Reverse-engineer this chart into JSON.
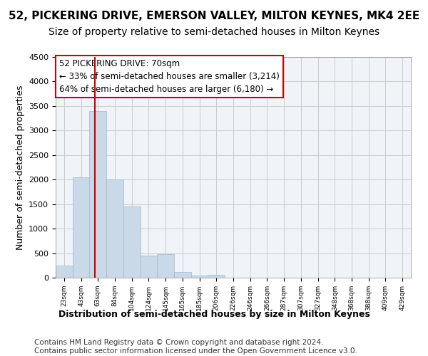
{
  "title1": "52, PICKERING DRIVE, EMERSON VALLEY, MILTON KEYNES, MK4 2EE",
  "title2": "Size of property relative to semi-detached houses in Milton Keynes",
  "xlabel": "Distribution of semi-detached houses by size in Milton Keynes",
  "ylabel": "Number of semi-detached properties",
  "footer1": "Contains HM Land Registry data © Crown copyright and database right 2024.",
  "footer2": "Contains public sector information licensed under the Open Government Licence v3.0.",
  "annotation_line1": "52 PICKERING DRIVE: 70sqm",
  "annotation_line2": "← 33% of semi-detached houses are smaller (3,214)",
  "annotation_line3": "64% of semi-detached houses are larger (6,180) →",
  "property_size": 70,
  "categories": [
    "23sqm",
    "43sqm",
    "63sqm",
    "84sqm",
    "104sqm",
    "124sqm",
    "145sqm",
    "165sqm",
    "185sqm",
    "206sqm",
    "226sqm",
    "246sqm",
    "266sqm",
    "287sqm",
    "307sqm",
    "327sqm",
    "348sqm",
    "368sqm",
    "388sqm",
    "409sqm",
    "429sqm"
  ],
  "bin_edges": [
    23,
    43,
    63,
    84,
    104,
    124,
    145,
    165,
    185,
    206,
    226,
    246,
    266,
    287,
    307,
    327,
    348,
    368,
    388,
    409,
    429
  ],
  "values": [
    250,
    2050,
    3400,
    2000,
    1450,
    450,
    475,
    110,
    50,
    60,
    0,
    0,
    0,
    0,
    0,
    0,
    0,
    0,
    0,
    0,
    0
  ],
  "bar_color": "#c9d9e8",
  "bar_edge_color": "#a0b8cc",
  "vline_color": "#cc0000",
  "vline_x": 70,
  "box_color": "#cc0000",
  "ylim": [
    0,
    4500
  ],
  "yticks": [
    0,
    500,
    1000,
    1500,
    2000,
    2500,
    3000,
    3500,
    4000,
    4500
  ],
  "grid_color": "#cccccc",
  "bg_color": "#f0f4f8",
  "title1_fontsize": 11,
  "title2_fontsize": 10,
  "xlabel_fontsize": 9,
  "ylabel_fontsize": 9,
  "footer_fontsize": 7.5,
  "annotation_fontsize": 8.5
}
